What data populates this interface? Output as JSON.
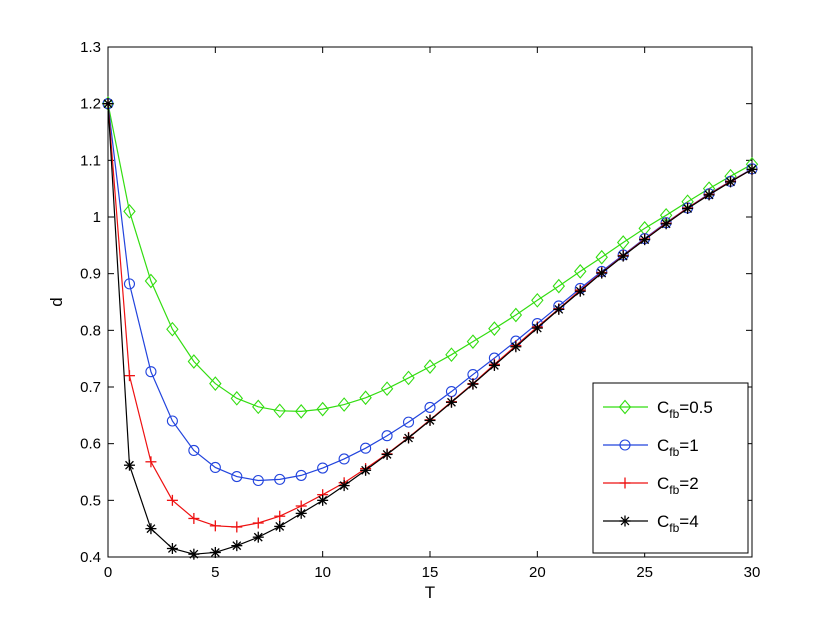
{
  "chart_data": {
    "type": "line",
    "title": "",
    "xlabel": "T",
    "ylabel": "d",
    "xlim": [
      0,
      30
    ],
    "ylim": [
      0.4,
      1.3
    ],
    "xticks": [
      0,
      5,
      10,
      15,
      20,
      25,
      30
    ],
    "yticks": [
      0.4,
      0.5,
      0.6,
      0.7,
      0.8,
      0.9,
      1,
      1.1,
      1.2,
      1.3
    ],
    "xtick_labels": [
      "0",
      "5",
      "10",
      "15",
      "20",
      "25",
      "30"
    ],
    "ytick_labels": [
      "0.4",
      "0.5",
      "0.6",
      "0.7",
      "0.8",
      "0.9",
      "1",
      "1.1",
      "1.2",
      "1.3"
    ],
    "grid": false,
    "legend_position": "bottom-right",
    "x": [
      0,
      1,
      2,
      3,
      4,
      5,
      6,
      7,
      8,
      9,
      10,
      11,
      12,
      13,
      14,
      15,
      16,
      17,
      18,
      19,
      20,
      21,
      22,
      23,
      24,
      25,
      26,
      27,
      28,
      29,
      30
    ],
    "series": [
      {
        "name_base": "C",
        "name_sub": "fb",
        "name_suffix": "=0.5",
        "color": "#33dd11",
        "marker": "diamond",
        "values": [
          1.2,
          1.01,
          0.887,
          0.802,
          0.745,
          0.706,
          0.68,
          0.665,
          0.658,
          0.657,
          0.661,
          0.669,
          0.681,
          0.697,
          0.716,
          0.736,
          0.757,
          0.78,
          0.803,
          0.827,
          0.853,
          0.878,
          0.904,
          0.929,
          0.955,
          0.98,
          1.003,
          1.027,
          1.05,
          1.072,
          1.093
        ]
      },
      {
        "name_base": "C",
        "name_sub": "fb",
        "name_suffix": "=1",
        "color": "#2244dd",
        "marker": "circle",
        "values": [
          1.2,
          0.882,
          0.727,
          0.64,
          0.588,
          0.558,
          0.542,
          0.535,
          0.537,
          0.544,
          0.557,
          0.573,
          0.592,
          0.614,
          0.638,
          0.664,
          0.692,
          0.722,
          0.751,
          0.781,
          0.812,
          0.843,
          0.874,
          0.904,
          0.933,
          0.962,
          0.99,
          1.016,
          1.041,
          1.063,
          1.085
        ]
      },
      {
        "name_base": "C",
        "name_sub": "fb",
        "name_suffix": "=2",
        "color": "#ee1111",
        "marker": "plus",
        "values": [
          1.2,
          0.72,
          0.568,
          0.5,
          0.468,
          0.455,
          0.453,
          0.46,
          0.472,
          0.49,
          0.51,
          0.531,
          0.556,
          0.582,
          0.611,
          0.642,
          0.674,
          0.706,
          0.74,
          0.773,
          0.806,
          0.838,
          0.871,
          0.902,
          0.932,
          0.961,
          0.989,
          1.016,
          1.04,
          1.063,
          1.084
        ]
      },
      {
        "name_base": "C",
        "name_sub": "fb",
        "name_suffix": "=4",
        "color": "#000000",
        "marker": "asterisk",
        "values": [
          1.2,
          0.562,
          0.45,
          0.415,
          0.405,
          0.408,
          0.42,
          0.435,
          0.454,
          0.477,
          0.5,
          0.526,
          0.553,
          0.581,
          0.61,
          0.641,
          0.673,
          0.705,
          0.738,
          0.771,
          0.804,
          0.837,
          0.869,
          0.901,
          0.931,
          0.96,
          0.988,
          1.015,
          1.039,
          1.062,
          1.084
        ]
      }
    ]
  }
}
